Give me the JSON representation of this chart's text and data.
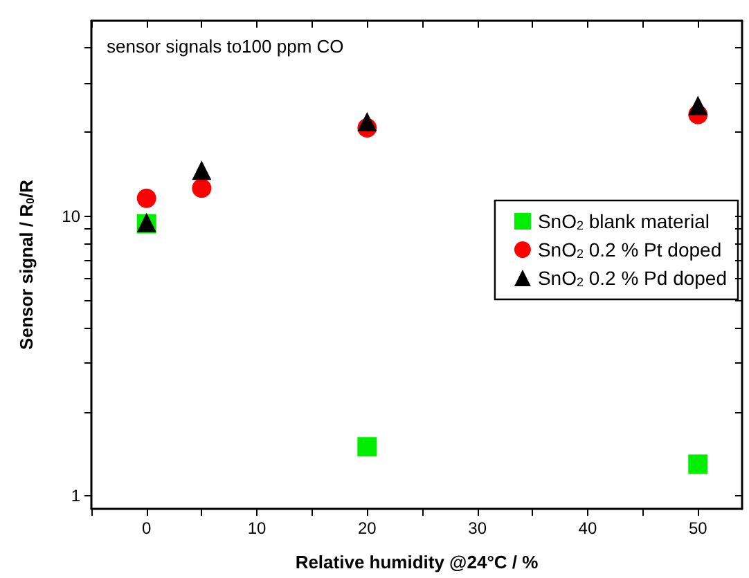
{
  "chart_data": {
    "type": "scatter",
    "title": "sensor signals to100 ppm CO",
    "xlabel": "Relative humidity @24°C / %",
    "ylabel": "Sensor signal / R$_{0}$/R",
    "x": [
      0,
      5,
      20,
      50
    ],
    "series": [
      {
        "name": "SnO$_{2}$ blank material",
        "color": "#00ee00",
        "marker": "square",
        "values": [
          9.4,
          null,
          1.5,
          1.3
        ]
      },
      {
        "name": "SnO$_{2}$ 0.2 % Pt doped",
        "color": "#ff0000",
        "marker": "circle",
        "values": [
          11.6,
          12.6,
          20.7,
          23.1
        ]
      },
      {
        "name": "SnO$_{2}$ 0.2 % Pd doped",
        "color": "#000000",
        "marker": "triangle",
        "values": [
          9.5,
          14.6,
          21.8,
          24.9
        ]
      }
    ],
    "log": "y",
    "grid": false,
    "legend": "right",
    "xlim": [
      -5,
      54
    ],
    "xticks": [
      {
        "value": -5,
        "label": null
      },
      0,
      {
        "value": 5,
        "label": null
      },
      10,
      {
        "value": 15,
        "label": null
      },
      20,
      {
        "value": 25,
        "label": null
      },
      30,
      {
        "value": 35,
        "label": null
      },
      40,
      {
        "value": 45,
        "label": null
      },
      50
    ],
    "ylim": [
      0.9,
      50
    ],
    "yticks": [
      1,
      {
        "value": 2,
        "label": null
      },
      {
        "value": 3,
        "label": null
      },
      {
        "value": 4,
        "label": null
      },
      {
        "value": 5,
        "label": null
      },
      {
        "value": 6,
        "label": null
      },
      {
        "value": 7,
        "label": null
      },
      {
        "value": 8,
        "label": null
      },
      {
        "value": 9,
        "label": null
      },
      10,
      {
        "value": 20,
        "label": null
      },
      {
        "value": 30,
        "label": null
      },
      {
        "value": 40,
        "label": null
      }
    ]
  }
}
